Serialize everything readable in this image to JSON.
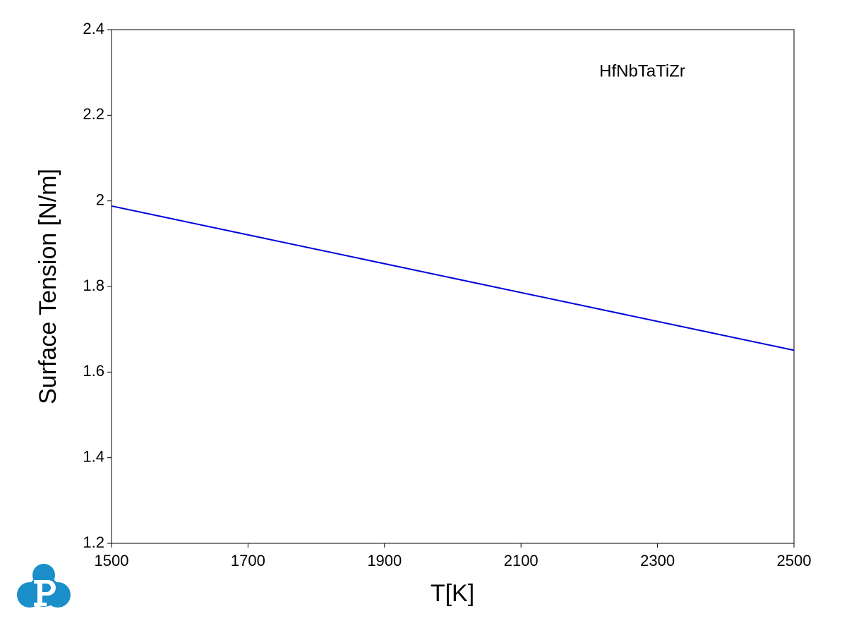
{
  "chart_data": {
    "type": "line",
    "xlabel": "T[K]",
    "ylabel": "Surface Tension [N/m]",
    "x": [
      1500,
      2500
    ],
    "series": [
      {
        "name": "HfNbTaTiZr",
        "color": "#0000dd",
        "values": [
          1.988,
          1.651
        ]
      }
    ],
    "xlim": [
      1500,
      2500
    ],
    "xticks": [
      1500,
      1700,
      1900,
      2100,
      2300,
      2500
    ],
    "ylim": [
      1.2,
      2.4
    ],
    "yticks": [
      1.2,
      1.4,
      1.6,
      1.8,
      2,
      2.2,
      2.4
    ],
    "grid": false
  }
}
